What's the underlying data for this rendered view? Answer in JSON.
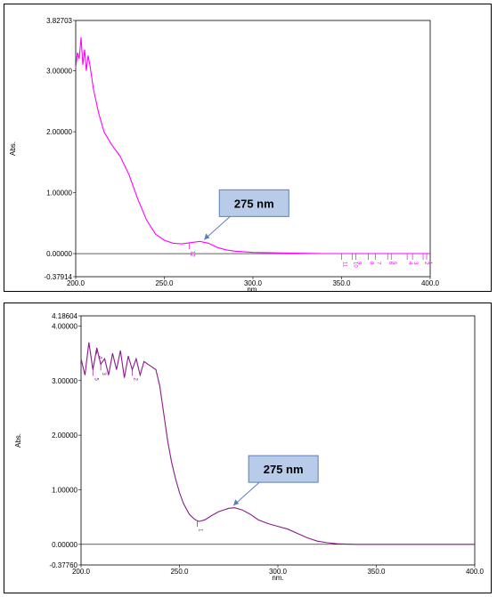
{
  "chart_data": [
    {
      "type": "line",
      "color": "#ff00ff",
      "xlabel": "nm.",
      "ylabel": "Abs.",
      "xlim": [
        200.0,
        400.0
      ],
      "ylim": [
        -0.37914,
        3.82703
      ],
      "x_ticks": [
        "200.0",
        "250.0",
        "300.0",
        "350.0",
        "400.0"
      ],
      "y_ticks": [
        {
          "value": 3.82703,
          "label": "3.82703"
        },
        {
          "value": 3.0,
          "label": "3.00000"
        },
        {
          "value": 2.0,
          "label": "2.00000"
        },
        {
          "value": 1.0,
          "label": "1.00000"
        },
        {
          "value": 0.0,
          "label": "0.00000"
        },
        {
          "value": -0.37914,
          "label": "-0.37914"
        }
      ],
      "x": [
        200,
        201,
        202,
        203,
        204,
        205,
        206,
        207,
        208,
        210,
        213,
        216,
        220,
        225,
        230,
        235,
        240,
        245,
        250,
        255,
        260,
        265,
        270,
        275,
        280,
        285,
        290,
        300,
        320,
        340,
        360,
        380,
        400
      ],
      "y": [
        3.05,
        3.3,
        3.2,
        3.55,
        3.1,
        3.35,
        3.0,
        3.25,
        3.1,
        2.7,
        2.3,
        2.0,
        1.8,
        1.6,
        1.3,
        0.9,
        0.55,
        0.32,
        0.22,
        0.17,
        0.16,
        0.18,
        0.2,
        0.17,
        0.1,
        0.06,
        0.04,
        0.02,
        0.01,
        0.0,
        0.0,
        0.0,
        0.0
      ],
      "peak_markers": [
        {
          "x": 264,
          "label": "12"
        },
        {
          "x": 350,
          "label": "11"
        },
        {
          "x": 356,
          "label": "10"
        },
        {
          "x": 358,
          "label": "9"
        },
        {
          "x": 365,
          "label": "8"
        },
        {
          "x": 369,
          "label": "7"
        },
        {
          "x": 376,
          "label": "6"
        },
        {
          "x": 378,
          "label": "5"
        },
        {
          "x": 387,
          "label": "4"
        },
        {
          "x": 390,
          "label": "3"
        },
        {
          "x": 396,
          "label": "2"
        },
        {
          "x": 398,
          "label": "1"
        }
      ],
      "annotation": {
        "text": "275 nm",
        "x": 272,
        "y": 0.2
      }
    },
    {
      "type": "line",
      "color": "#8b1a8b",
      "xlabel": "nm.",
      "ylabel": "Abs.",
      "xlim": [
        200.0,
        400.0
      ],
      "ylim": [
        -0.3776,
        4.18604
      ],
      "x_ticks": [
        "200.0",
        "250.0",
        "300.0",
        "350.0",
        "400.0"
      ],
      "y_ticks": [
        {
          "value": 4.18604,
          "label": "4.18604"
        },
        {
          "value": 4.0,
          "label": "4.00000"
        },
        {
          "value": 3.0,
          "label": "3.00000"
        },
        {
          "value": 2.0,
          "label": "2.00000"
        },
        {
          "value": 1.0,
          "label": "1.00000"
        },
        {
          "value": 0.0,
          "label": "0.00000"
        },
        {
          "value": -0.3776,
          "label": "-0.37760"
        }
      ],
      "x": [
        200,
        202,
        204,
        206,
        208,
        210,
        212,
        214,
        216,
        218,
        220,
        222,
        224,
        226,
        228,
        230,
        232,
        234,
        236,
        238,
        240,
        242,
        244,
        246,
        248,
        250,
        252,
        255,
        258,
        260,
        263,
        266,
        270,
        275,
        278,
        282,
        286,
        290,
        295,
        300,
        305,
        310,
        315,
        320,
        325,
        330,
        340,
        350,
        360,
        380,
        400
      ],
      "y": [
        3.4,
        3.1,
        3.7,
        3.2,
        3.6,
        3.3,
        3.4,
        3.1,
        3.5,
        3.2,
        3.55,
        3.05,
        3.45,
        3.2,
        3.4,
        3.1,
        3.35,
        3.3,
        3.25,
        3.2,
        2.9,
        2.4,
        1.9,
        1.5,
        1.2,
        0.95,
        0.75,
        0.55,
        0.45,
        0.42,
        0.45,
        0.52,
        0.6,
        0.66,
        0.67,
        0.63,
        0.55,
        0.45,
        0.38,
        0.33,
        0.28,
        0.2,
        0.12,
        0.06,
        0.03,
        0.01,
        0.0,
        0.0,
        0.0,
        0.0,
        0.0
      ],
      "peak_markers": [
        {
          "x": 206,
          "label": "5"
        },
        {
          "x": 208,
          "label": "4"
        },
        {
          "x": 210,
          "label": "3"
        },
        {
          "x": 226,
          "label": "2"
        },
        {
          "x": 259,
          "label": "1"
        }
      ],
      "annotation": {
        "text": "275 nm",
        "x": 277,
        "y": 0.68
      }
    }
  ]
}
